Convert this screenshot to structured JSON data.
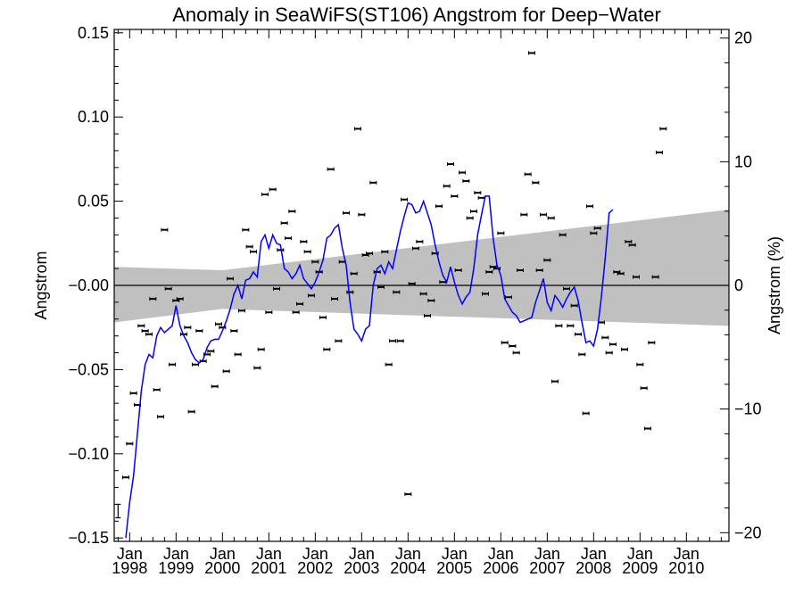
{
  "chart_data": {
    "type": "scatter",
    "title": "Anomaly in SeaWiFS(ST106) Angstrom for Deep−Water",
    "ylabel": "Angstrom",
    "ylabel_right": "Angstrom (%)",
    "ylim": [
      -0.152,
      0.152
    ],
    "ylim_right": [
      -20.7,
      20.7
    ],
    "xlim": [
      "1997-09",
      "2010-12"
    ],
    "yticks": [
      {
        "value": 0.15,
        "label": "0.15"
      },
      {
        "value": 0.1,
        "label": "0.10"
      },
      {
        "value": 0.05,
        "label": "0.05"
      },
      {
        "value": 0.0,
        "label": "−0.00"
      },
      {
        "value": -0.05,
        "label": "−0.05"
      },
      {
        "value": -0.1,
        "label": "−0.10"
      },
      {
        "value": -0.15,
        "label": "−0.15"
      }
    ],
    "yticks_right": [
      {
        "value": 20,
        "label": "20"
      },
      {
        "value": 10,
        "label": "10"
      },
      {
        "value": 0,
        "label": "0"
      },
      {
        "value": -10,
        "label": "−10"
      },
      {
        "value": -20,
        "label": "−20"
      }
    ],
    "xticks": [
      {
        "year": 1998,
        "month": "Jan",
        "label": "1998"
      },
      {
        "year": 1999,
        "month": "Jan",
        "label": "1999"
      },
      {
        "year": 2000,
        "month": "Jan",
        "label": "2000"
      },
      {
        "year": 2001,
        "month": "Jan",
        "label": "2001"
      },
      {
        "year": 2002,
        "month": "Jan",
        "label": "2002"
      },
      {
        "year": 2003,
        "month": "Jan",
        "label": "2003"
      },
      {
        "year": 2004,
        "month": "Jan",
        "label": "2004"
      },
      {
        "year": 2005,
        "month": "Jan",
        "label": "2005"
      },
      {
        "year": 2006,
        "month": "Jan",
        "label": "2006"
      },
      {
        "year": 2007,
        "month": "Jan",
        "label": "2007"
      },
      {
        "year": 2008,
        "month": "Jan",
        "label": "2008"
      },
      {
        "year": 2009,
        "month": "Jan",
        "label": "2009"
      },
      {
        "year": 2010,
        "month": "Jan",
        "label": "2010"
      }
    ],
    "monthly_anomalies": [
      {
        "x": "1997-12",
        "y": -0.114
      },
      {
        "x": "1998-01",
        "y": -0.094
      },
      {
        "x": "1998-02",
        "y": -0.064
      },
      {
        "x": "1998-03",
        "y": -0.071
      },
      {
        "x": "1998-04",
        "y": -0.024
      },
      {
        "x": "1998-05",
        "y": -0.027
      },
      {
        "x": "1998-06",
        "y": -0.029
      },
      {
        "x": "1998-07",
        "y": -0.008
      },
      {
        "x": "1998-08",
        "y": -0.062
      },
      {
        "x": "1998-09",
        "y": -0.078
      },
      {
        "x": "1998-10",
        "y": 0.033
      },
      {
        "x": "1998-11",
        "y": -0.002
      },
      {
        "x": "1998-12",
        "y": -0.047
      },
      {
        "x": "1999-01",
        "y": -0.009
      },
      {
        "x": "1999-02",
        "y": -0.008
      },
      {
        "x": "1999-03",
        "y": -0.029
      },
      {
        "x": "1999-04",
        "y": -0.025
      },
      {
        "x": "1999-05",
        "y": -0.075
      },
      {
        "x": "1999-06",
        "y": -0.047
      },
      {
        "x": "1999-07",
        "y": -0.027
      },
      {
        "x": "1999-08",
        "y": -0.045
      },
      {
        "x": "1999-09",
        "y": -0.041
      },
      {
        "x": "1999-10",
        "y": -0.039
      },
      {
        "x": "1999-11",
        "y": -0.06
      },
      {
        "x": "1999-12",
        "y": -0.023
      },
      {
        "x": "2000-01",
        "y": -0.025
      },
      {
        "x": "2000-02",
        "y": -0.051
      },
      {
        "x": "2000-03",
        "y": 0.004
      },
      {
        "x": "2000-04",
        "y": -0.027
      },
      {
        "x": "2000-05",
        "y": -0.041
      },
      {
        "x": "2000-06",
        "y": -0.015
      },
      {
        "x": "2000-07",
        "y": 0.033
      },
      {
        "x": "2000-08",
        "y": 0.023
      },
      {
        "x": "2000-09",
        "y": 0.02
      },
      {
        "x": "2000-10",
        "y": -0.049
      },
      {
        "x": "2000-11",
        "y": -0.038
      },
      {
        "x": "2000-12",
        "y": 0.054
      },
      {
        "x": "2001-01",
        "y": -0.016
      },
      {
        "x": "2001-02",
        "y": 0.057
      },
      {
        "x": "2001-03",
        "y": -0.002
      },
      {
        "x": "2001-04",
        "y": 0.021
      },
      {
        "x": "2001-05",
        "y": 0.037
      },
      {
        "x": "2001-06",
        "y": 0.028
      },
      {
        "x": "2001-07",
        "y": 0.044
      },
      {
        "x": "2001-08",
        "y": -0.016
      },
      {
        "x": "2001-09",
        "y": -0.011
      },
      {
        "x": "2001-10",
        "y": 0.026
      },
      {
        "x": "2001-11",
        "y": 0.02
      },
      {
        "x": "2001-12",
        "y": -0.006
      },
      {
        "x": "2002-01",
        "y": 0.014
      },
      {
        "x": "2002-02",
        "y": 0.008
      },
      {
        "x": "2002-03",
        "y": -0.019
      },
      {
        "x": "2002-04",
        "y": -0.038
      },
      {
        "x": "2002-05",
        "y": 0.069
      },
      {
        "x": "2002-06",
        "y": -0.008
      },
      {
        "x": "2002-07",
        "y": -0.033
      },
      {
        "x": "2002-08",
        "y": 0.014
      },
      {
        "x": "2002-09",
        "y": 0.043
      },
      {
        "x": "2002-10",
        "y": -0.004
      },
      {
        "x": "2002-11",
        "y": 0.007
      },
      {
        "x": "2002-12",
        "y": 0.093
      },
      {
        "x": "2003-01",
        "y": 0.042
      },
      {
        "x": "2003-02",
        "y": 0.018
      },
      {
        "x": "2003-03",
        "y": 0.019
      },
      {
        "x": "2003-04",
        "y": 0.061
      },
      {
        "x": "2003-05",
        "y": 0.008
      },
      {
        "x": "2003-06",
        "y": -0.001
      },
      {
        "x": "2003-07",
        "y": 0.02
      },
      {
        "x": "2003-08",
        "y": -0.047
      },
      {
        "x": "2003-09",
        "y": -0.033
      },
      {
        "x": "2003-10",
        "y": -0.004
      },
      {
        "x": "2003-11",
        "y": -0.033
      },
      {
        "x": "2003-12",
        "y": 0.051
      },
      {
        "x": "2004-01",
        "y": -0.124
      },
      {
        "x": "2004-02",
        "y": 0.001
      },
      {
        "x": "2004-03",
        "y": 0.022
      },
      {
        "x": "2004-04",
        "y": 0.026
      },
      {
        "x": "2004-05",
        "y": -0.005
      },
      {
        "x": "2004-06",
        "y": -0.018
      },
      {
        "x": "2004-07",
        "y": -0.009
      },
      {
        "x": "2004-08",
        "y": 0.019
      },
      {
        "x": "2004-09",
        "y": 0.047
      },
      {
        "x": "2004-10",
        "y": 0.002
      },
      {
        "x": "2004-11",
        "y": 0.059
      },
      {
        "x": "2004-12",
        "y": 0.072
      },
      {
        "x": "2005-01",
        "y": 0.053
      },
      {
        "x": "2005-02",
        "y": 0.009
      },
      {
        "x": "2005-03",
        "y": 0.067
      },
      {
        "x": "2005-04",
        "y": 0.062
      },
      {
        "x": "2005-05",
        "y": 0.04
      },
      {
        "x": "2005-06",
        "y": 0.044
      },
      {
        "x": "2005-07",
        "y": 0.055
      },
      {
        "x": "2005-08",
        "y": 0.052
      },
      {
        "x": "2005-09",
        "y": -0.005
      },
      {
        "x": "2005-10",
        "y": 0.008
      },
      {
        "x": "2005-11",
        "y": 0.011
      },
      {
        "x": "2005-12",
        "y": 0.01
      },
      {
        "x": "2006-01",
        "y": 0.031
      },
      {
        "x": "2006-02",
        "y": -0.034
      },
      {
        "x": "2006-03",
        "y": -0.007
      },
      {
        "x": "2006-04",
        "y": -0.036
      },
      {
        "x": "2006-05",
        "y": -0.04
      },
      {
        "x": "2006-06",
        "y": 0.009
      },
      {
        "x": "2006-07",
        "y": 0.042
      },
      {
        "x": "2006-08",
        "y": 0.066
      },
      {
        "x": "2006-09",
        "y": 0.138
      },
      {
        "x": "2006-10",
        "y": 0.061
      },
      {
        "x": "2006-11",
        "y": 0.009
      },
      {
        "x": "2006-12",
        "y": 0.042
      },
      {
        "x": "2007-01",
        "y": 0.015
      },
      {
        "x": "2007-02",
        "y": 0.04
      },
      {
        "x": "2007-03",
        "y": -0.057
      },
      {
        "x": "2007-04",
        "y": -0.024
      },
      {
        "x": "2007-05",
        "y": 0.03
      },
      {
        "x": "2007-06",
        "y": -0.002
      },
      {
        "x": "2007-07",
        "y": -0.024
      },
      {
        "x": "2007-08",
        "y": -0.012
      },
      {
        "x": "2007-09",
        "y": -0.029
      },
      {
        "x": "2007-10",
        "y": -0.041
      },
      {
        "x": "2007-11",
        "y": -0.076
      },
      {
        "x": "2007-12",
        "y": 0.047
      },
      {
        "x": "2008-01",
        "y": 0.031
      },
      {
        "x": "2008-02",
        "y": 0.034
      },
      {
        "x": "2008-03",
        "y": -0.022
      },
      {
        "x": "2008-04",
        "y": -0.031
      },
      {
        "x": "2008-05",
        "y": -0.04
      },
      {
        "x": "2008-06",
        "y": -0.035
      },
      {
        "x": "2008-07",
        "y": 0.008
      },
      {
        "x": "2008-08",
        "y": 0.007
      },
      {
        "x": "2008-09",
        "y": -0.038
      },
      {
        "x": "2008-10",
        "y": 0.026
      },
      {
        "x": "2008-11",
        "y": 0.024
      },
      {
        "x": "2008-12",
        "y": 0.005
      },
      {
        "x": "2009-01",
        "y": -0.047
      },
      {
        "x": "2009-02",
        "y": -0.061
      },
      {
        "x": "2009-03",
        "y": -0.085
      },
      {
        "x": "2009-04",
        "y": -0.034
      },
      {
        "x": "2009-05",
        "y": 0.005
      },
      {
        "x": "2009-06",
        "y": 0.079
      },
      {
        "x": "2009-07",
        "y": 0.093
      }
    ],
    "smoothed_series": [
      {
        "x": "1997-12",
        "y": -0.15
      },
      {
        "x": "1998-01",
        "y": -0.129
      },
      {
        "x": "1998-02",
        "y": -0.113
      },
      {
        "x": "1998-03",
        "y": -0.088
      },
      {
        "x": "1998-04",
        "y": -0.063
      },
      {
        "x": "1998-05",
        "y": -0.047
      },
      {
        "x": "1998-06",
        "y": -0.041
      },
      {
        "x": "1998-07",
        "y": -0.043
      },
      {
        "x": "1998-08",
        "y": -0.03
      },
      {
        "x": "1998-09",
        "y": -0.025
      },
      {
        "x": "1998-10",
        "y": -0.028
      },
      {
        "x": "1998-11",
        "y": -0.026
      },
      {
        "x": "1998-12",
        "y": -0.024
      },
      {
        "x": "1999-01",
        "y": -0.012
      },
      {
        "x": "1999-02",
        "y": -0.024
      },
      {
        "x": "1999-03",
        "y": -0.03
      },
      {
        "x": "1999-04",
        "y": -0.034
      },
      {
        "x": "1999-05",
        "y": -0.04
      },
      {
        "x": "1999-06",
        "y": -0.044
      },
      {
        "x": "1999-07",
        "y": -0.046
      },
      {
        "x": "1999-08",
        "y": -0.044
      },
      {
        "x": "1999-09",
        "y": -0.037
      },
      {
        "x": "1999-10",
        "y": -0.033
      },
      {
        "x": "1999-11",
        "y": -0.032
      },
      {
        "x": "1999-12",
        "y": -0.032
      },
      {
        "x": "2000-01",
        "y": -0.027
      },
      {
        "x": "2000-02",
        "y": -0.021
      },
      {
        "x": "2000-03",
        "y": -0.014
      },
      {
        "x": "2000-04",
        "y": -0.005
      },
      {
        "x": "2000-05",
        "y": 0.0
      },
      {
        "x": "2000-06",
        "y": -0.008
      },
      {
        "x": "2000-07",
        "y": 0.003
      },
      {
        "x": "2000-08",
        "y": 0.004
      },
      {
        "x": "2000-09",
        "y": 0.008
      },
      {
        "x": "2000-10",
        "y": 0.005
      },
      {
        "x": "2000-11",
        "y": 0.026
      },
      {
        "x": "2000-12",
        "y": 0.03
      },
      {
        "x": "2001-01",
        "y": 0.022
      },
      {
        "x": "2001-02",
        "y": 0.03
      },
      {
        "x": "2001-03",
        "y": 0.025
      },
      {
        "x": "2001-04",
        "y": 0.024
      },
      {
        "x": "2001-05",
        "y": 0.01
      },
      {
        "x": "2001-06",
        "y": 0.008
      },
      {
        "x": "2001-07",
        "y": 0.004
      },
      {
        "x": "2001-08",
        "y": 0.007
      },
      {
        "x": "2001-09",
        "y": 0.012
      },
      {
        "x": "2001-10",
        "y": 0.004
      },
      {
        "x": "2001-11",
        "y": 0.001
      },
      {
        "x": "2001-12",
        "y": -0.002
      },
      {
        "x": "2002-01",
        "y": 0.002
      },
      {
        "x": "2002-02",
        "y": 0.008
      },
      {
        "x": "2002-03",
        "y": 0.015
      },
      {
        "x": "2002-04",
        "y": 0.028
      },
      {
        "x": "2002-05",
        "y": 0.03
      },
      {
        "x": "2002-06",
        "y": 0.034
      },
      {
        "x": "2002-07",
        "y": 0.036
      },
      {
        "x": "2002-08",
        "y": 0.022
      },
      {
        "x": "2002-09",
        "y": 0.012
      },
      {
        "x": "2002-10",
        "y": -0.01
      },
      {
        "x": "2002-11",
        "y": -0.026
      },
      {
        "x": "2002-12",
        "y": -0.029
      },
      {
        "x": "2003-01",
        "y": -0.033
      },
      {
        "x": "2003-02",
        "y": -0.026
      },
      {
        "x": "2003-03",
        "y": -0.024
      },
      {
        "x": "2003-04",
        "y": 0.0
      },
      {
        "x": "2003-05",
        "y": 0.01
      },
      {
        "x": "2003-06",
        "y": 0.012
      },
      {
        "x": "2003-07",
        "y": 0.007
      },
      {
        "x": "2003-08",
        "y": 0.014
      },
      {
        "x": "2003-09",
        "y": 0.01
      },
      {
        "x": "2003-10",
        "y": 0.021
      },
      {
        "x": "2003-11",
        "y": 0.032
      },
      {
        "x": "2003-12",
        "y": 0.041
      },
      {
        "x": "2004-01",
        "y": 0.049
      },
      {
        "x": "2004-02",
        "y": 0.048
      },
      {
        "x": "2004-03",
        "y": 0.043
      },
      {
        "x": "2004-04",
        "y": 0.044
      },
      {
        "x": "2004-05",
        "y": 0.05
      },
      {
        "x": "2004-06",
        "y": 0.043
      },
      {
        "x": "2004-07",
        "y": 0.036
      },
      {
        "x": "2004-08",
        "y": 0.024
      },
      {
        "x": "2004-09",
        "y": 0.014
      },
      {
        "x": "2004-10",
        "y": 0.006
      },
      {
        "x": "2004-11",
        "y": 0.002
      },
      {
        "x": "2004-12",
        "y": 0.011
      },
      {
        "x": "2005-01",
        "y": 0.002
      },
      {
        "x": "2005-02",
        "y": -0.006
      },
      {
        "x": "2005-03",
        "y": -0.011
      },
      {
        "x": "2005-04",
        "y": -0.007
      },
      {
        "x": "2005-05",
        "y": -0.004
      },
      {
        "x": "2005-06",
        "y": 0.01
      },
      {
        "x": "2005-07",
        "y": 0.03
      },
      {
        "x": "2005-08",
        "y": 0.042
      },
      {
        "x": "2005-09",
        "y": 0.053
      },
      {
        "x": "2005-10",
        "y": 0.053
      },
      {
        "x": "2005-11",
        "y": 0.028
      },
      {
        "x": "2005-12",
        "y": 0.012
      },
      {
        "x": "2006-01",
        "y": 0.006
      },
      {
        "x": "2006-02",
        "y": -0.008
      },
      {
        "x": "2006-03",
        "y": -0.012
      },
      {
        "x": "2006-04",
        "y": -0.016
      },
      {
        "x": "2006-05",
        "y": -0.018
      },
      {
        "x": "2006-06",
        "y": -0.022
      },
      {
        "x": "2006-07",
        "y": -0.021
      },
      {
        "x": "2006-08",
        "y": -0.02
      },
      {
        "x": "2006-09",
        "y": -0.019
      },
      {
        "x": "2006-10",
        "y": -0.01
      },
      {
        "x": "2006-11",
        "y": -0.003
      },
      {
        "x": "2006-12",
        "y": 0.004
      },
      {
        "x": "2007-01",
        "y": -0.01
      },
      {
        "x": "2007-02",
        "y": -0.015
      },
      {
        "x": "2007-03",
        "y": -0.006
      },
      {
        "x": "2007-04",
        "y": -0.009
      },
      {
        "x": "2007-05",
        "y": -0.013
      },
      {
        "x": "2007-06",
        "y": -0.008
      },
      {
        "x": "2007-07",
        "y": -0.004
      },
      {
        "x": "2007-08",
        "y": -0.001
      },
      {
        "x": "2007-09",
        "y": -0.009
      },
      {
        "x": "2007-10",
        "y": -0.022
      },
      {
        "x": "2007-11",
        "y": -0.034
      },
      {
        "x": "2007-12",
        "y": -0.033
      },
      {
        "x": "2008-01",
        "y": -0.036
      },
      {
        "x": "2008-02",
        "y": -0.026
      },
      {
        "x": "2008-03",
        "y": -0.007
      },
      {
        "x": "2008-04",
        "y": 0.016
      },
      {
        "x": "2008-05",
        "y": 0.043
      },
      {
        "x": "2008-06",
        "y": 0.045
      }
    ],
    "trend_band": {
      "segments": [
        {
          "x": "1997-09",
          "lower": -0.022,
          "upper": 0.011
        },
        {
          "x": "2000-01",
          "lower": -0.014,
          "upper": 0.009
        },
        {
          "x": "2010-12",
          "lower": -0.024,
          "upper": 0.045
        }
      ],
      "color": "#c0c0c0"
    },
    "error_bar_sample": {
      "x": "1997-10",
      "y": -0.134,
      "half_width": 0.004
    },
    "colors": {
      "smoothed": "#0000ff",
      "points": "#000000",
      "band": "#c0c0c0",
      "zero_line": "#000000"
    },
    "grid": false,
    "legend": "none"
  }
}
